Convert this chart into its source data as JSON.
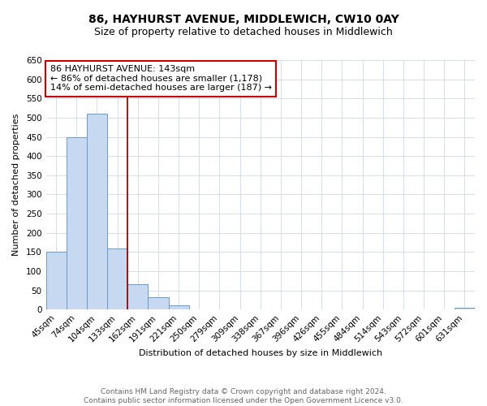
{
  "title": "86, HAYHURST AVENUE, MIDDLEWICH, CW10 0AY",
  "subtitle": "Size of property relative to detached houses in Middlewich",
  "xlabel": "Distribution of detached houses by size in Middlewich",
  "ylabel": "Number of detached properties",
  "bar_labels": [
    "45sqm",
    "74sqm",
    "104sqm",
    "133sqm",
    "162sqm",
    "191sqm",
    "221sqm",
    "250sqm",
    "279sqm",
    "309sqm",
    "338sqm",
    "367sqm",
    "396sqm",
    "426sqm",
    "455sqm",
    "484sqm",
    "514sqm",
    "543sqm",
    "572sqm",
    "601sqm",
    "631sqm"
  ],
  "bar_values": [
    150,
    450,
    510,
    160,
    67,
    32,
    12,
    1,
    0,
    0,
    0,
    0,
    0,
    0,
    0,
    0,
    0,
    0,
    0,
    0,
    5
  ],
  "bar_color": "#c6d9f0",
  "bar_edge_color": "#6a9cc8",
  "property_line_color": "#aa0000",
  "annotation_title": "86 HAYHURST AVENUE: 143sqm",
  "annotation_line1": "← 86% of detached houses are smaller (1,178)",
  "annotation_line2": "14% of semi-detached houses are larger (187) →",
  "annotation_box_facecolor": "#ffffff",
  "annotation_box_edgecolor": "#cc0000",
  "ylim": [
    0,
    650
  ],
  "yticks": [
    0,
    50,
    100,
    150,
    200,
    250,
    300,
    350,
    400,
    450,
    500,
    550,
    600,
    650
  ],
  "footer_line1": "Contains HM Land Registry data © Crown copyright and database right 2024.",
  "footer_line2": "Contains public sector information licensed under the Open Government Licence v3.0.",
  "background_color": "#ffffff",
  "grid_color": "#d0d8e8",
  "title_fontsize": 10,
  "subtitle_fontsize": 9,
  "axis_label_fontsize": 8,
  "tick_fontsize": 7.5,
  "footer_fontsize": 6.5,
  "annotation_fontsize": 8
}
